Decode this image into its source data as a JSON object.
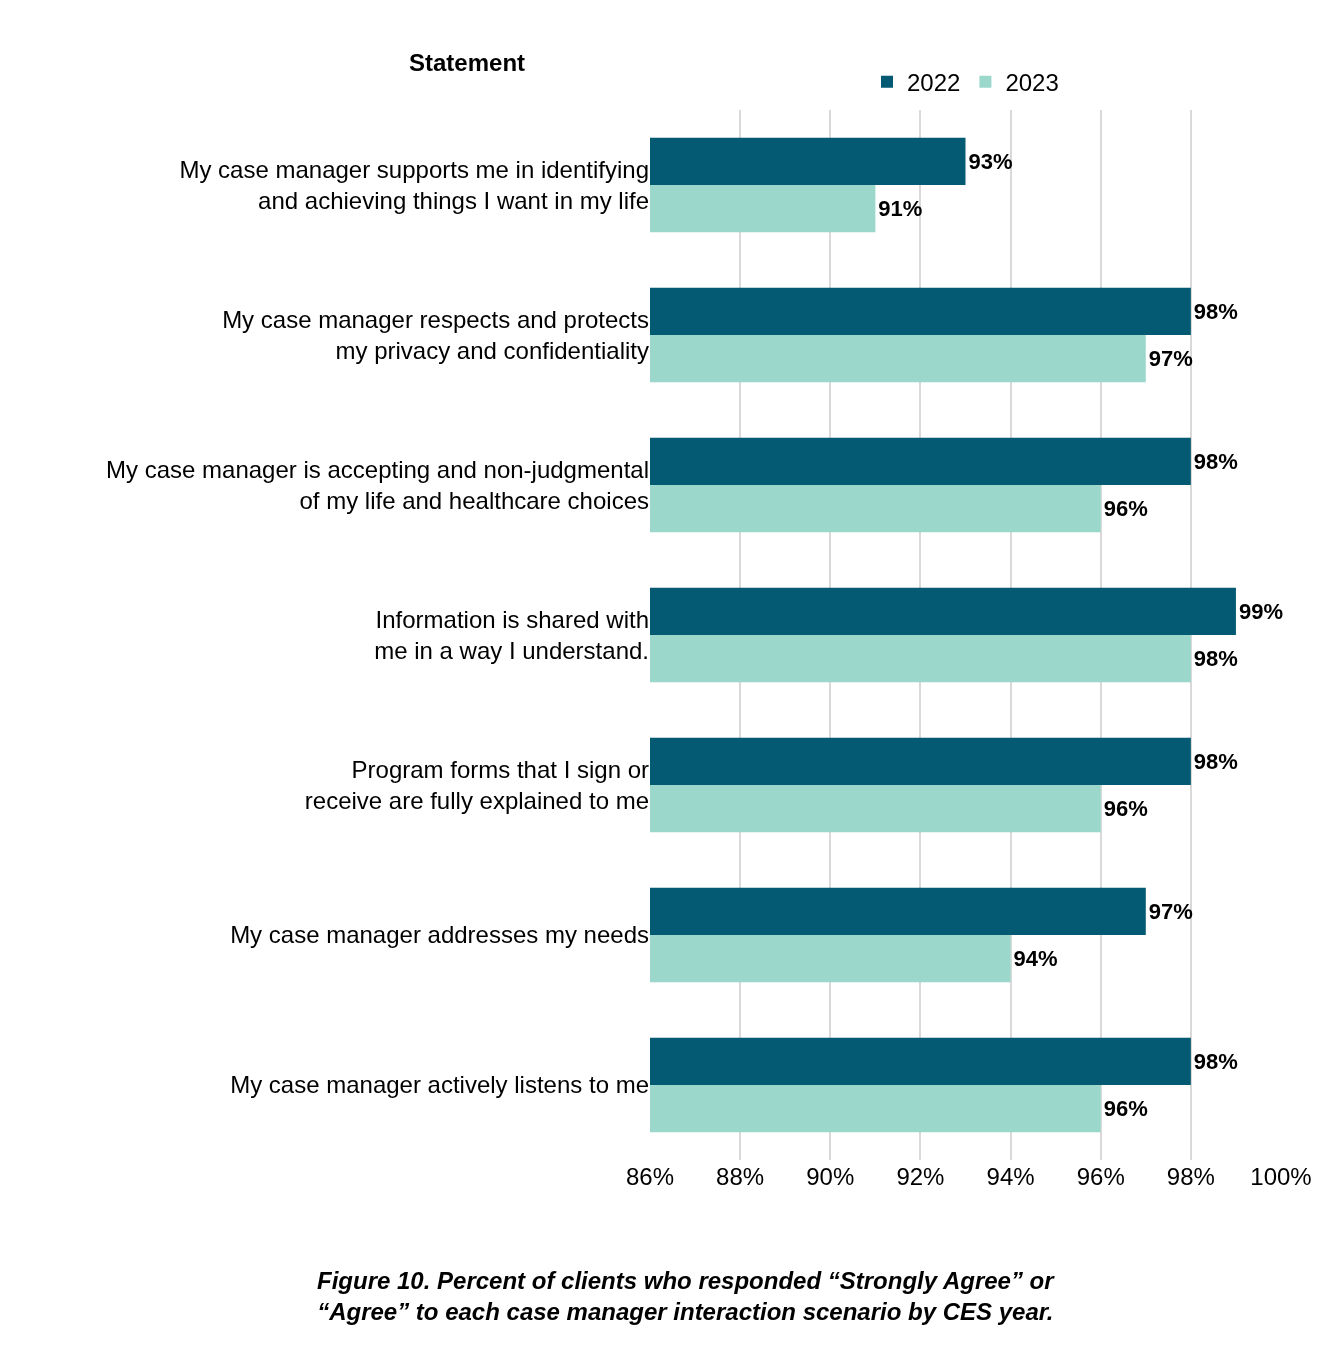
{
  "chart_data": {
    "type": "bar",
    "orientation": "horizontal",
    "ylabel": "Statement",
    "categories": [
      "My case manager supports me in identifying and achieving things I want in my life",
      "My case manager respects and protects my privacy and confidentiality",
      "My case manager is accepting and non-judgmental of my life and healthcare choices",
      "Information is shared with me in a way I understand.",
      "Program forms that I sign or receive are fully explained to me",
      "My case manager addresses my needs",
      "My case manager actively listens to me"
    ],
    "series": [
      {
        "name": "2022",
        "color": "#045a72",
        "values": [
          93,
          98,
          98,
          99,
          98,
          97,
          98
        ],
        "value_labels": [
          "93%",
          "98%",
          "98%",
          "99%",
          "98%",
          "97%",
          "98%"
        ]
      },
      {
        "name": "2023",
        "color": "#9bd8cb",
        "values": [
          91,
          97,
          96,
          98,
          96,
          94,
          96
        ],
        "value_labels": [
          "91%",
          "97%",
          "96%",
          "98%",
          "96%",
          "94%",
          "96%"
        ]
      }
    ],
    "xlim": [
      86,
      100
    ],
    "xticks": [
      {
        "value": 86,
        "label": "86%"
      },
      {
        "value": 88,
        "label": "88%"
      },
      {
        "value": 90,
        "label": "90%"
      },
      {
        "value": 92,
        "label": "92%"
      },
      {
        "value": 94,
        "label": "94%"
      },
      {
        "value": 96,
        "label": "96%"
      },
      {
        "value": 98,
        "label": "98%"
      },
      {
        "value": 100,
        "label": "100%"
      }
    ],
    "grid": "x",
    "legend": "top",
    "annotations": [
      "Figure 10. Percent of clients who responded “Strongly Agree” or “Agree” to each case manager interaction scenario by CES year."
    ]
  }
}
